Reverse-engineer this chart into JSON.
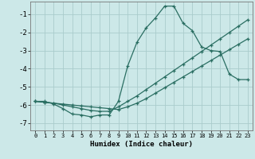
{
  "xlabel": "Humidex (Indice chaleur)",
  "background_color": "#cce8e8",
  "grid_color": "#aacccc",
  "line_color": "#2a6e62",
  "xlim": [
    -0.5,
    23.5
  ],
  "ylim": [
    -7.4,
    -0.3
  ],
  "xticks": [
    0,
    1,
    2,
    3,
    4,
    5,
    6,
    7,
    8,
    9,
    10,
    11,
    12,
    13,
    14,
    15,
    16,
    17,
    18,
    19,
    20,
    21,
    22,
    23
  ],
  "yticks": [
    -1,
    -2,
    -3,
    -4,
    -5,
    -6,
    -7
  ],
  "line1_x": [
    0,
    1,
    2,
    3,
    4,
    5,
    6,
    7,
    8,
    9,
    10,
    11,
    12,
    13,
    14,
    15,
    16,
    17,
    18,
    19,
    20,
    21,
    22,
    23
  ],
  "line1_y": [
    -5.8,
    -5.8,
    -5.95,
    -6.2,
    -6.5,
    -6.55,
    -6.65,
    -6.55,
    -6.55,
    -5.8,
    -3.85,
    -2.55,
    -1.75,
    -1.2,
    -0.55,
    -0.55,
    -1.5,
    -1.9,
    -2.8,
    -3.0,
    -3.05,
    -4.3,
    -4.6,
    -4.6
  ],
  "line2_x": [
    0,
    1,
    2,
    3,
    4,
    5,
    6,
    7,
    8,
    9,
    10,
    11,
    12,
    13,
    14,
    15,
    16,
    17,
    18,
    19,
    20,
    21,
    22,
    23
  ],
  "line2_y": [
    -5.8,
    -5.85,
    -5.9,
    -6.0,
    -6.1,
    -6.2,
    -6.3,
    -6.35,
    -6.35,
    -6.1,
    -5.8,
    -5.5,
    -5.15,
    -4.8,
    -4.45,
    -4.1,
    -3.75,
    -3.4,
    -3.05,
    -2.7,
    -2.35,
    -2.0,
    -1.65,
    -1.3
  ],
  "line3_x": [
    0,
    1,
    2,
    3,
    4,
    5,
    6,
    7,
    8,
    9,
    10,
    11,
    12,
    13,
    14,
    15,
    16,
    17,
    18,
    19,
    20,
    21,
    22,
    23
  ],
  "line3_y": [
    -5.8,
    -5.85,
    -5.9,
    -5.95,
    -6.0,
    -6.05,
    -6.1,
    -6.15,
    -6.2,
    -6.25,
    -6.1,
    -5.9,
    -5.65,
    -5.35,
    -5.05,
    -4.75,
    -4.45,
    -4.15,
    -3.85,
    -3.55,
    -3.25,
    -2.95,
    -2.65,
    -2.35
  ]
}
